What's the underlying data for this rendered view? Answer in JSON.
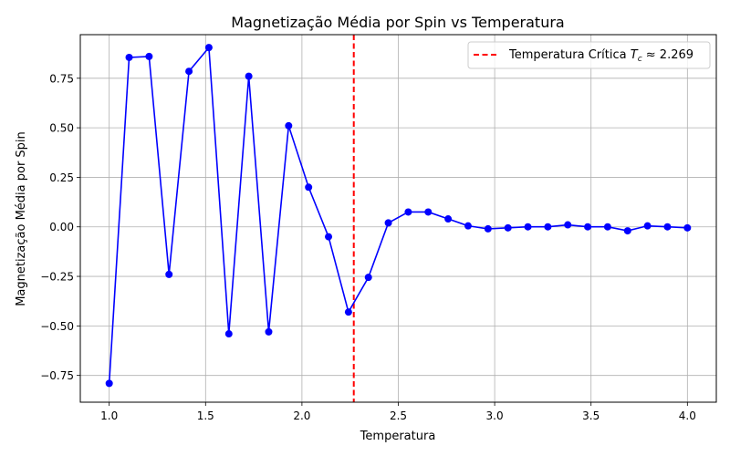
{
  "chart_data": {
    "type": "line",
    "title": "Magnetização Média por Spin vs Temperatura",
    "xlabel": "Temperatura",
    "ylabel": "Magnetização Média por Spin",
    "xlim": [
      0.85,
      4.15
    ],
    "ylim": [
      -0.885,
      0.97
    ],
    "xticks": [
      1.0,
      1.5,
      2.0,
      2.5,
      3.0,
      3.5,
      4.0
    ],
    "xtick_labels": [
      "1.0",
      "1.5",
      "2.0",
      "2.5",
      "3.0",
      "3.5",
      "4.0"
    ],
    "yticks": [
      -0.75,
      -0.5,
      -0.25,
      0.0,
      0.25,
      0.5,
      0.75
    ],
    "ytick_labels": [
      "−0.75",
      "−0.50",
      "−0.25",
      "0.00",
      "0.25",
      "0.50",
      "0.75"
    ],
    "grid": true,
    "legend_position": "top-right",
    "series": [
      {
        "color": "#0000ff",
        "marker": "circle",
        "x": [
          1.0,
          1.1034,
          1.2069,
          1.3103,
          1.4138,
          1.5172,
          1.6207,
          1.7241,
          1.8276,
          1.931,
          2.0345,
          2.1379,
          2.2414,
          2.3448,
          2.4483,
          2.5517,
          2.6552,
          2.7586,
          2.8621,
          2.9655,
          3.069,
          3.1724,
          3.2759,
          3.3793,
          3.4828,
          3.5862,
          3.6897,
          3.7931,
          3.8966,
          4.0
        ],
        "y": [
          -0.79,
          0.855,
          0.86,
          -0.24,
          0.785,
          0.905,
          -0.54,
          0.76,
          -0.53,
          0.51,
          0.2,
          -0.05,
          -0.43,
          -0.255,
          0.02,
          0.075,
          0.075,
          0.04,
          0.005,
          -0.01,
          -0.005,
          0.0,
          0.0,
          0.01,
          0.0,
          0.0,
          -0.02,
          0.005,
          0.0,
          -0.005
        ]
      }
    ],
    "reference_line": {
      "orientation": "vertical",
      "x": 2.269,
      "color": "#ff0000",
      "style": "dashed",
      "legend_prefix": "Temperatura Crítica ",
      "legend_symbol": "T",
      "legend_subscript": "c",
      "legend_suffix": " ≈ 2.269"
    }
  }
}
